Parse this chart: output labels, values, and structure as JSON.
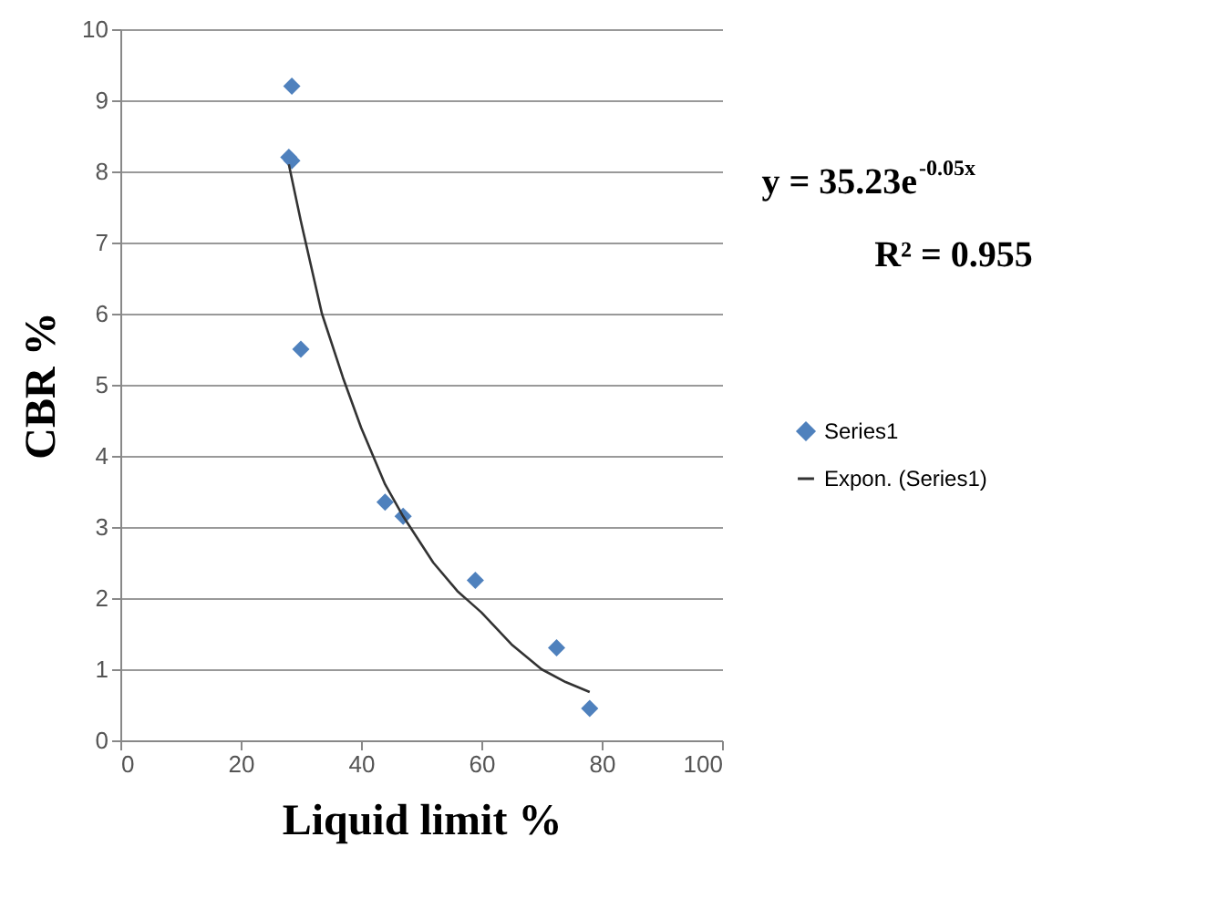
{
  "chart_data": {
    "type": "scatter",
    "xlabel": "Liquid limit %",
    "ylabel": "CBR %",
    "xlim": [
      0,
      100
    ],
    "xticks": [
      0,
      20,
      40,
      60,
      80,
      100
    ],
    "ylim": [
      0,
      10
    ],
    "yticks": [
      0,
      1,
      2,
      3,
      4,
      5,
      6,
      7,
      8,
      9,
      10
    ],
    "grid": "y",
    "legend": "right",
    "annotations": [
      "y = 35.23e$^{-0.05x}$",
      "R² = 0.955"
    ],
    "series": [
      {
        "name": "Series1",
        "marker": "diamond",
        "color": "#4f81bd",
        "x": [
          28.5,
          28,
          28.5,
          30,
          44,
          47,
          59,
          72.5,
          78
        ],
        "values": [
          9.2,
          8.2,
          8.15,
          5.5,
          3.35,
          3.15,
          2.25,
          1.3,
          0.45
        ]
      },
      {
        "name": "Expon. (Series1)",
        "type": "line",
        "color": "#333333",
        "line_style": "solid",
        "x": [
          28,
          30,
          33.5,
          37,
          40,
          44,
          47,
          52,
          56,
          60,
          65,
          70,
          74,
          78
        ],
        "values": [
          8.1,
          7.3,
          6.0,
          5.1,
          4.4,
          3.6,
          3.15,
          2.5,
          2.1,
          1.8,
          1.35,
          1.0,
          0.82,
          0.68
        ]
      }
    ]
  }
}
